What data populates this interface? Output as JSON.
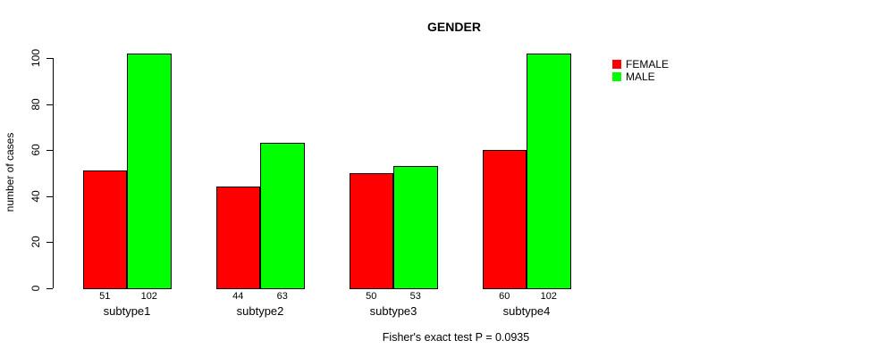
{
  "chart_data": {
    "type": "bar",
    "title": "GENDER",
    "xlabel": "",
    "ylabel": "number of cases",
    "caption": "Fisher's exact test P = 0.0935",
    "categories": [
      "subtype1",
      "subtype2",
      "subtype3",
      "subtype4"
    ],
    "series": [
      {
        "name": "FEMALE",
        "color": "#ff0000",
        "values": [
          51,
          44,
          50,
          60
        ]
      },
      {
        "name": "MALE",
        "color": "#00ff00",
        "values": [
          102,
          63,
          53,
          102
        ]
      }
    ],
    "ylim": [
      0,
      100
    ],
    "yticks": [
      0,
      20,
      40,
      60,
      80,
      100
    ],
    "grid": false,
    "legend_position": "top-right",
    "bar_value_labels": true,
    "axis_color": "#000000",
    "background_color": "#ffffff"
  }
}
